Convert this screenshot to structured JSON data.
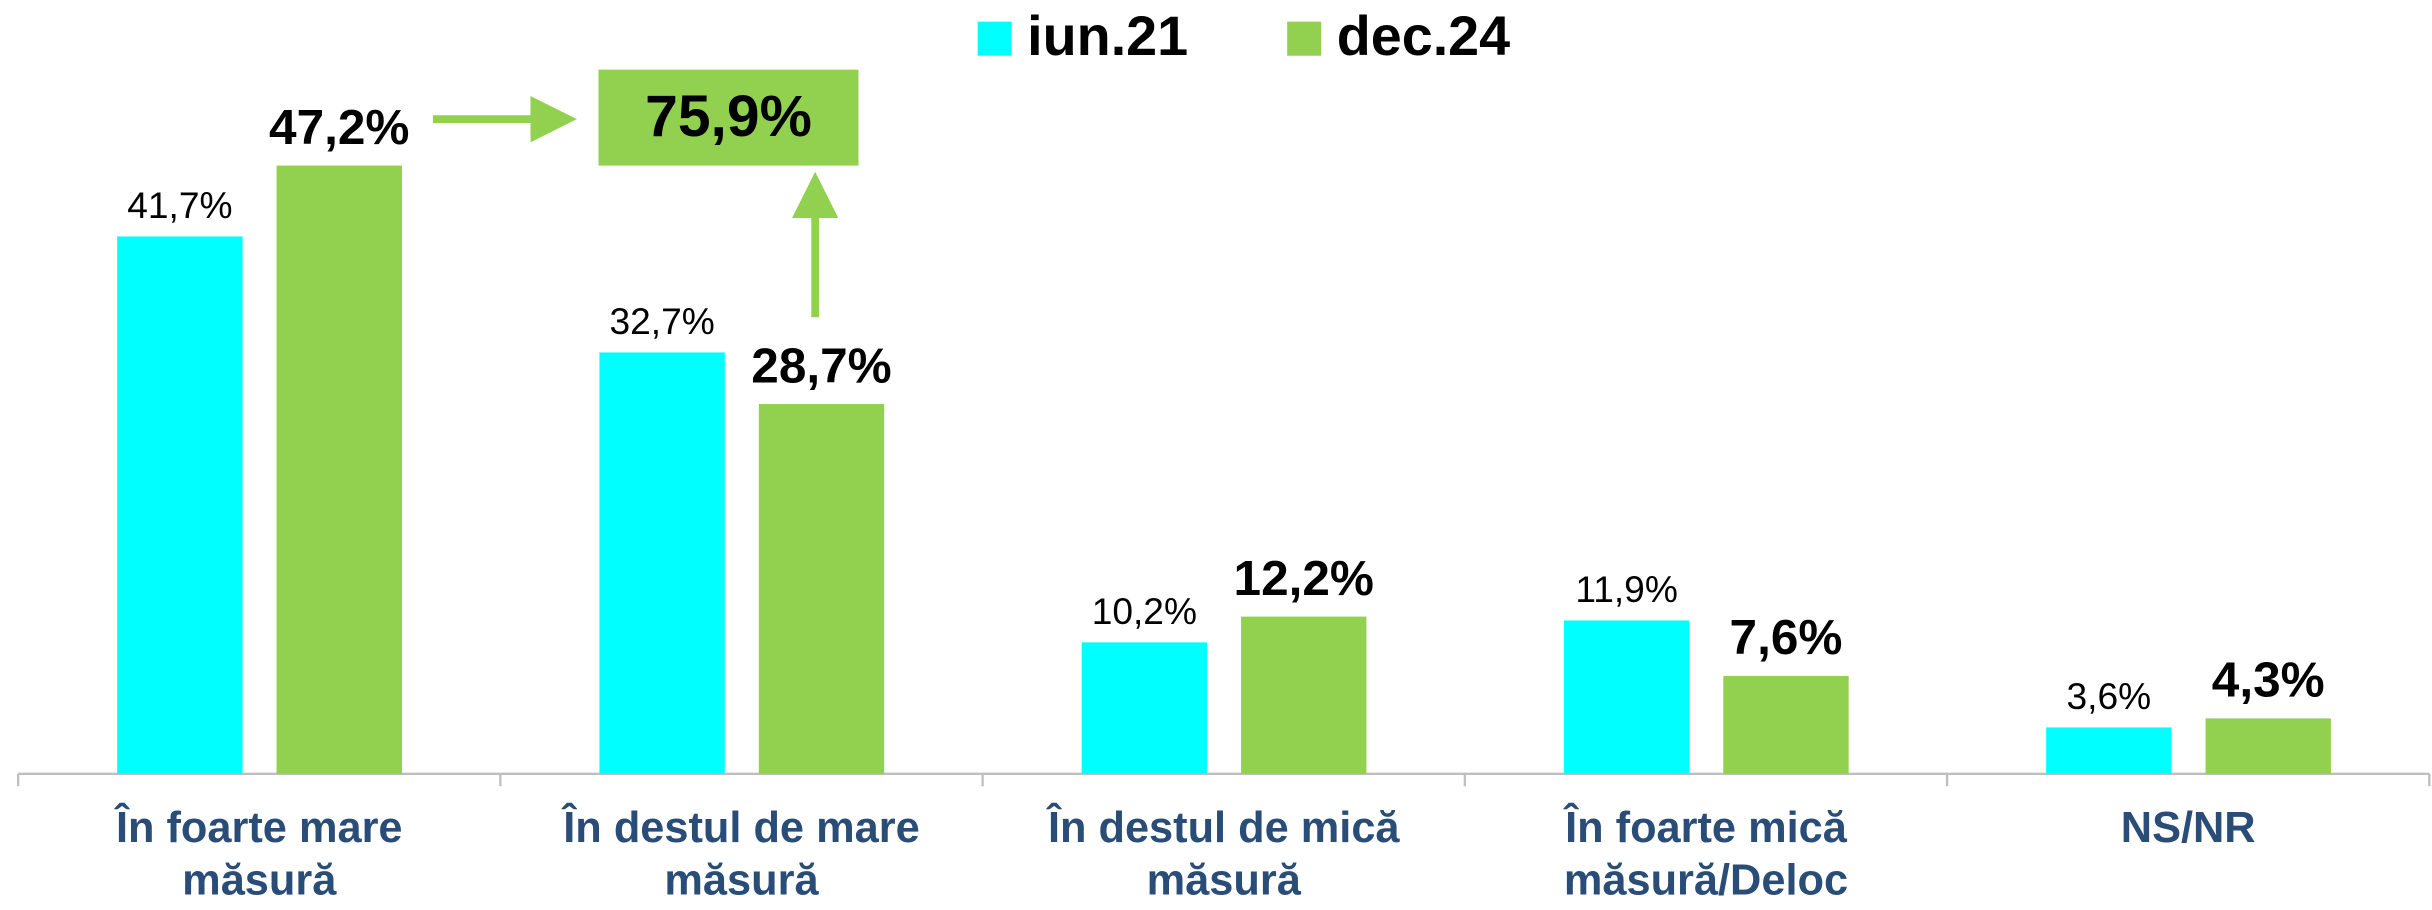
{
  "chart_data": {
    "type": "bar",
    "categories": [
      "În foarte mare măsură",
      "În destul de mare măsură",
      "În destul de mică măsură",
      "În foarte mică măsură/Deloc",
      "NS/NR"
    ],
    "series": [
      {
        "name": "iun.21",
        "color": "#00ffff",
        "values": [
          41.7,
          32.7,
          10.2,
          11.9,
          3.6
        ],
        "value_labels": [
          "41,7%",
          "32,7%",
          "10,2%",
          "11,9%",
          "3,6%"
        ]
      },
      {
        "name": "dec.24",
        "color": "#92d050",
        "values": [
          47.2,
          28.7,
          12.2,
          7.6,
          4.3
        ],
        "value_labels": [
          "47,2%",
          "28,7%",
          "12,2%",
          "7,6%",
          "4,3%"
        ]
      }
    ],
    "annotation": "75,9%",
    "legend": "top"
  }
}
